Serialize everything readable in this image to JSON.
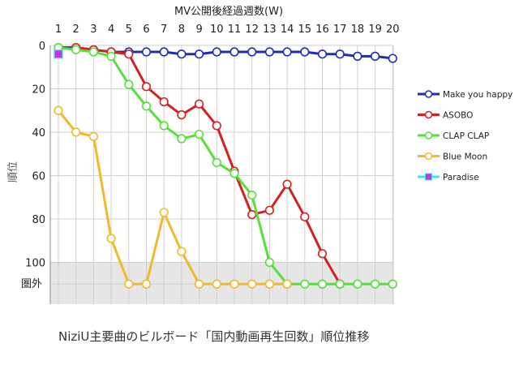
{
  "chart_data": {
    "type": "line",
    "title": "MV公開後経過週数(W)",
    "ylabel": "順位",
    "caption": "NiziU主要曲のビルボード「国内動画再生回数」順位推移",
    "x": [
      1,
      2,
      3,
      4,
      5,
      6,
      7,
      8,
      9,
      10,
      11,
      12,
      13,
      14,
      15,
      16,
      17,
      18,
      19,
      20
    ],
    "x_axis_position": "top",
    "y_ticks": [
      "0",
      "20",
      "40",
      "60",
      "80",
      "100"
    ],
    "y_out_label": "圏外",
    "ylim": [
      0,
      110
    ],
    "y_inverted": true,
    "out_of_chart_value": 110,
    "grid": true,
    "legend_position": "right",
    "series": [
      {
        "name": "Make you happy",
        "color": "#1f2db3",
        "marker": "circle",
        "values": [
          1,
          1,
          2,
          3,
          3,
          3,
          3,
          4,
          4,
          3,
          3,
          3,
          3,
          3,
          3,
          4,
          4,
          5,
          5,
          6
        ]
      },
      {
        "name": "ASOBO",
        "color": "#d42020",
        "marker": "circle",
        "values": [
          null,
          1,
          2,
          3,
          4,
          19,
          26,
          32,
          27,
          37,
          58,
          78,
          76,
          64,
          79,
          96,
          110,
          null,
          null,
          null
        ]
      },
      {
        "name": "CLAP CLAP",
        "color": "#55e03a",
        "marker": "circle",
        "values": [
          1,
          2,
          3,
          5,
          18,
          28,
          37,
          43,
          41,
          54,
          59,
          69,
          100,
          110,
          110,
          110,
          110,
          110,
          110,
          110
        ]
      },
      {
        "name": "Blue Moon",
        "color": "#f0b92e",
        "marker": "circle",
        "values": [
          30,
          40,
          42,
          89,
          110,
          110,
          77,
          95,
          110,
          110,
          110,
          110,
          110,
          110,
          null,
          null,
          null,
          null,
          null,
          null
        ]
      },
      {
        "name": "Paradise",
        "color": "#40e0e8",
        "marker": "square",
        "marker_color": "#cc33dd",
        "values": [
          4,
          null,
          null,
          null,
          null,
          null,
          null,
          null,
          null,
          null,
          null,
          null,
          null,
          null,
          null,
          null,
          null,
          null,
          null,
          null
        ]
      }
    ]
  }
}
